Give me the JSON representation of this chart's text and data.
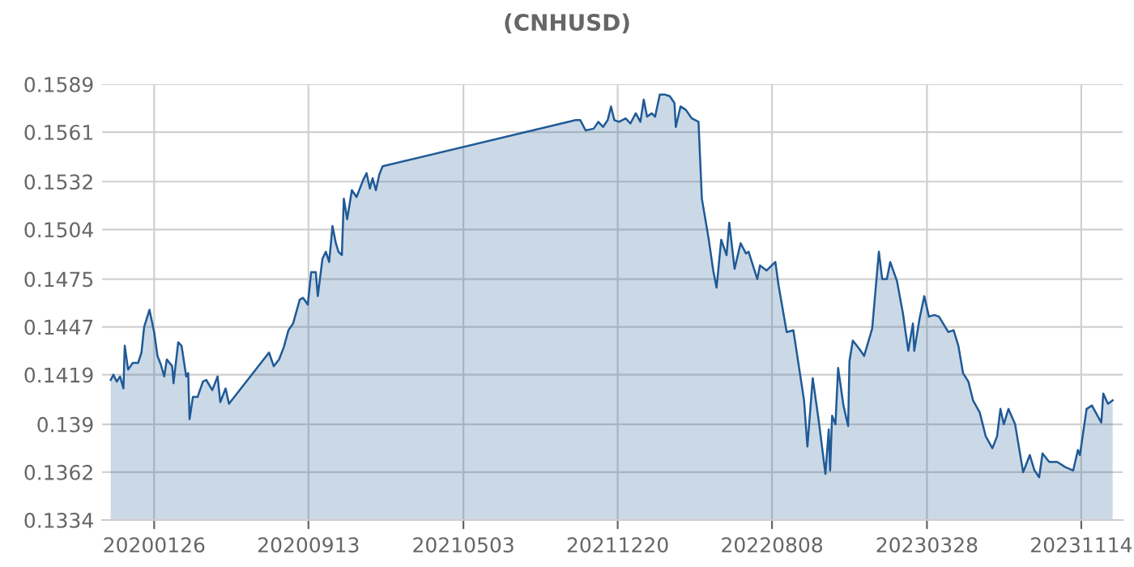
{
  "chart_data": {
    "type": "area",
    "title": "(CNHUSD)",
    "x": [
      "2019-11-22",
      "2019-11-26",
      "2019-12-01",
      "2019-12-06",
      "2019-12-11",
      "2019-12-13",
      "2019-12-18",
      "2019-12-25",
      "2020-01-02",
      "2020-01-07",
      "2020-01-11",
      "2020-01-19",
      "2020-01-26",
      "2020-01-31",
      "2020-02-05",
      "2020-02-10",
      "2020-02-14",
      "2020-02-22",
      "2020-02-24",
      "2020-03-02",
      "2020-03-07",
      "2020-03-14",
      "2020-03-17",
      "2020-03-19",
      "2020-03-24",
      "2020-03-31",
      "2020-04-08",
      "2020-04-13",
      "2020-04-22",
      "2020-04-30",
      "2020-05-04",
      "2020-05-12",
      "2020-05-17",
      "2020-07-16",
      "2020-07-23",
      "2020-07-31",
      "2020-08-07",
      "2020-08-14",
      "2020-08-21",
      "2020-08-31",
      "2020-09-05",
      "2020-09-12",
      "2020-09-17",
      "2020-09-24",
      "2020-09-27",
      "2020-10-04",
      "2020-10-09",
      "2020-10-14",
      "2020-10-19",
      "2020-10-24",
      "2020-10-28",
      "2020-11-02",
      "2020-11-05",
      "2020-11-10",
      "2020-11-17",
      "2020-11-24",
      "2020-12-04",
      "2020-12-09",
      "2020-12-14",
      "2020-12-18",
      "2020-12-23",
      "2020-12-28",
      "2021-01-02",
      "2021-10-18",
      "2021-10-25",
      "2021-11-02",
      "2021-11-14",
      "2021-11-21",
      "2021-11-28",
      "2021-12-05",
      "2021-12-10",
      "2021-12-15",
      "2021-12-22",
      "2022-01-01",
      "2022-01-08",
      "2022-01-16",
      "2022-01-23",
      "2022-01-28",
      "2022-02-02",
      "2022-02-09",
      "2022-02-14",
      "2022-02-21",
      "2022-02-28",
      "2022-03-08",
      "2022-03-15",
      "2022-03-17",
      "2022-03-24",
      "2022-04-01",
      "2022-04-10",
      "2022-04-20",
      "2022-04-25",
      "2022-05-05",
      "2022-05-12",
      "2022-05-17",
      "2022-05-24",
      "2022-06-01",
      "2022-06-05",
      "2022-06-13",
      "2022-06-22",
      "2022-06-30",
      "2022-07-04",
      "2022-07-17",
      "2022-07-21",
      "2022-07-31",
      "2022-08-13",
      "2022-08-18",
      "2022-08-30",
      "2022-09-09",
      "2022-09-18",
      "2022-09-25",
      "2022-09-30",
      "2022-10-08",
      "2022-10-17",
      "2022-10-27",
      "2022-11-01",
      "2022-11-03",
      "2022-11-06",
      "2022-11-11",
      "2022-11-15",
      "2022-11-23",
      "2022-11-30",
      "2022-12-02",
      "2022-12-07",
      "2022-12-17",
      "2022-12-24",
      "2023-01-05",
      "2023-01-15",
      "2023-01-20",
      "2023-01-27",
      "2023-02-01",
      "2023-02-11",
      "2023-02-20",
      "2023-02-28",
      "2023-03-07",
      "2023-03-09",
      "2023-03-17",
      "2023-03-24",
      "2023-03-31",
      "2023-04-08",
      "2023-04-15",
      "2023-04-29",
      "2023-05-07",
      "2023-05-14",
      "2023-05-21",
      "2023-05-29",
      "2023-06-05",
      "2023-06-15",
      "2023-06-24",
      "2023-07-04",
      "2023-07-11",
      "2023-07-16",
      "2023-07-21",
      "2023-07-28",
      "2023-08-07",
      "2023-08-19",
      "2023-08-29",
      "2023-09-05",
      "2023-09-12",
      "2023-09-17",
      "2023-09-27",
      "2023-10-09",
      "2023-10-21",
      "2023-11-02",
      "2023-11-09",
      "2023-11-12",
      "2023-11-22",
      "2023-11-30",
      "2023-12-07",
      "2023-12-14",
      "2023-12-17",
      "2023-12-24",
      "2023-12-31"
    ],
    "series": [
      {
        "color": "#1f5a96",
        "values": [
          0.1416,
          0.1419,
          0.1415,
          0.1418,
          0.1411,
          0.1436,
          0.1422,
          0.1426,
          0.1426,
          0.1432,
          0.1447,
          0.1457,
          0.1444,
          0.143,
          0.1425,
          0.1418,
          0.1428,
          0.1424,
          0.1414,
          0.1438,
          0.1436,
          0.1418,
          0.142,
          0.1393,
          0.1406,
          0.1406,
          0.1415,
          0.1416,
          0.141,
          0.1418,
          0.1403,
          0.1411,
          0.1402,
          0.1432,
          0.1424,
          0.1428,
          0.1435,
          0.1445,
          0.1449,
          0.1463,
          0.1464,
          0.146,
          0.1479,
          0.1479,
          0.1465,
          0.1487,
          0.1491,
          0.1485,
          0.1506,
          0.1496,
          0.1491,
          0.1489,
          0.1522,
          0.151,
          0.1527,
          0.1523,
          0.1533,
          0.1537,
          0.1528,
          0.1534,
          0.1527,
          0.1536,
          0.1541,
          0.1568,
          0.1568,
          0.1562,
          0.1563,
          0.1567,
          0.1564,
          0.1568,
          0.1576,
          0.1568,
          0.1567,
          0.1569,
          0.1566,
          0.1572,
          0.1567,
          0.158,
          0.157,
          0.1572,
          0.157,
          0.1583,
          0.1583,
          0.1582,
          0.1578,
          0.1564,
          0.1576,
          0.1574,
          0.1569,
          0.1567,
          0.1522,
          0.1499,
          0.148,
          0.147,
          0.1498,
          0.1489,
          0.1508,
          0.1481,
          0.1496,
          0.149,
          0.1491,
          0.1475,
          0.1483,
          0.148,
          0.1485,
          0.1471,
          0.1444,
          0.1445,
          0.1422,
          0.1404,
          0.1377,
          0.1417,
          0.1392,
          0.1361,
          0.1387,
          0.1363,
          0.1395,
          0.139,
          0.1423,
          0.1401,
          0.1389,
          0.1427,
          0.1439,
          0.1434,
          0.143,
          0.1446,
          0.1491,
          0.1475,
          0.1475,
          0.1485,
          0.1474,
          0.1455,
          0.1433,
          0.1449,
          0.1433,
          0.1452,
          0.1465,
          0.1453,
          0.1454,
          0.1453,
          0.1444,
          0.1445,
          0.1436,
          0.142,
          0.1415,
          0.1404,
          0.1397,
          0.1383,
          0.1376,
          0.1383,
          0.1399,
          0.139,
          0.1399,
          0.139,
          0.1362,
          0.1372,
          0.1363,
          0.1359,
          0.1373,
          0.1368,
          0.1368,
          0.1365,
          0.1363,
          0.1375,
          0.1372,
          0.1399,
          0.1401,
          0.1396,
          0.1391,
          0.1408,
          0.1402,
          0.1404
        ]
      }
    ],
    "xlim": [
      "2019-11-09",
      "2024-01-15"
    ],
    "xticks": [
      {
        "value": "2020-01-26",
        "label": "20200126"
      },
      {
        "value": "2020-09-13",
        "label": "20200913"
      },
      {
        "value": "2021-05-03",
        "label": "20210503"
      },
      {
        "value": "2021-12-20",
        "label": "20211220"
      },
      {
        "value": "2022-08-08",
        "label": "20220808"
      },
      {
        "value": "2023-03-28",
        "label": "20230328"
      },
      {
        "value": "2023-11-14",
        "label": "20231114"
      }
    ],
    "ylim": [
      0.1334,
      0.1589
    ],
    "yticks": [
      0.1334,
      0.1362,
      0.139,
      0.1419,
      0.1447,
      0.1475,
      0.1504,
      0.1532,
      0.1561,
      0.1589
    ],
    "grid": true
  }
}
